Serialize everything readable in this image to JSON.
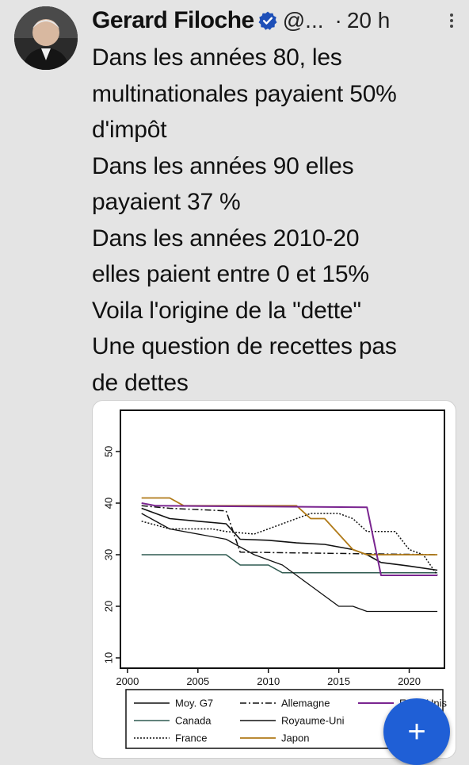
{
  "tweet": {
    "author_name": "Gerard Filoche",
    "handle": "@...",
    "separator": "·",
    "time": "20 h",
    "lines": [
      "Dans les années 80, les",
      "multinationales payaient 50%",
      "d'impôt",
      "Dans les années 90 elles",
      "payaient 37 %",
      "Dans les années 2010-20",
      "elles paient entre 0 et 15%",
      "Voila l'origine de la \"dette\"",
      "Une question de recettes pas",
      "de dettes"
    ]
  },
  "icons": {
    "verified": "verified-badge-icon",
    "more": "more-options-icon",
    "compose": "plus-icon"
  },
  "compose_label": "+",
  "colors": {
    "accent": "#1f5fd6",
    "background": "#e4e4e4"
  },
  "chart_data": {
    "type": "line",
    "x": [
      2000,
      2005,
      2010,
      2015,
      2020
    ],
    "xticks": [
      "2000",
      "2005",
      "2010",
      "2015",
      "2020"
    ],
    "yticks": [
      "10",
      "20",
      "30",
      "40",
      "50"
    ],
    "xlim": [
      1999.5,
      2022.5
    ],
    "ylim": [
      8,
      58
    ],
    "grid": false,
    "legend_position": "bottom",
    "series": [
      {
        "name": "Moy. G7",
        "color": "#111111",
        "dash": "",
        "width": 1.6,
        "points": [
          [
            2001,
            39
          ],
          [
            2003,
            37
          ],
          [
            2005,
            36.5
          ],
          [
            2007,
            36
          ],
          [
            2008,
            33
          ],
          [
            2010,
            32.8
          ],
          [
            2012,
            32.3
          ],
          [
            2014,
            32
          ],
          [
            2016,
            31
          ],
          [
            2017,
            30
          ],
          [
            2018,
            28.5
          ],
          [
            2020,
            27.8
          ],
          [
            2022,
            27
          ]
        ]
      },
      {
        "name": "Canada",
        "color": "#2f5a50",
        "dash": "",
        "width": 1.5,
        "points": [
          [
            2001,
            30
          ],
          [
            2007,
            30
          ],
          [
            2008,
            28
          ],
          [
            2010,
            28
          ],
          [
            2011,
            26.5
          ],
          [
            2022,
            26.5
          ]
        ]
      },
      {
        "name": "France",
        "color": "#111111",
        "dash": "2,2",
        "width": 1.5,
        "points": [
          [
            2001,
            36.5
          ],
          [
            2003,
            35
          ],
          [
            2006,
            35
          ],
          [
            2007,
            34.5
          ],
          [
            2009,
            34
          ],
          [
            2010,
            35
          ],
          [
            2011,
            36
          ],
          [
            2012,
            37
          ],
          [
            2013,
            38
          ],
          [
            2014,
            38
          ],
          [
            2015,
            38
          ],
          [
            2016,
            37
          ],
          [
            2017,
            34.5
          ],
          [
            2019,
            34.5
          ],
          [
            2020,
            31
          ],
          [
            2021,
            30
          ],
          [
            2022,
            26
          ]
        ]
      },
      {
        "name": "Allemagne",
        "color": "#111111",
        "dash": "8,3,2,3",
        "width": 1.5,
        "points": [
          [
            2001,
            39.5
          ],
          [
            2003,
            39
          ],
          [
            2007,
            38.5
          ],
          [
            2008,
            30.5
          ],
          [
            2022,
            30
          ]
        ]
      },
      {
        "name": "Royaume-Uni",
        "color": "#111111",
        "dash": "",
        "width": 1.3,
        "points": [
          [
            2001,
            38
          ],
          [
            2003,
            35
          ],
          [
            2007,
            33
          ],
          [
            2009,
            30
          ],
          [
            2011,
            28
          ],
          [
            2012,
            26
          ],
          [
            2013,
            24
          ],
          [
            2014,
            22
          ],
          [
            2015,
            20
          ],
          [
            2016,
            20
          ],
          [
            2017,
            19
          ],
          [
            2022,
            19
          ]
        ]
      },
      {
        "name": "Japon",
        "color": "#b07a18",
        "dash": "",
        "width": 1.8,
        "points": [
          [
            2001,
            41
          ],
          [
            2003,
            41
          ],
          [
            2004,
            39.5
          ],
          [
            2012,
            39.5
          ],
          [
            2013,
            37
          ],
          [
            2014,
            37
          ],
          [
            2015,
            34
          ],
          [
            2016,
            31
          ],
          [
            2017,
            30
          ],
          [
            2022,
            30
          ]
        ]
      },
      {
        "name": "Etats-Unis",
        "color": "#7a2590",
        "dash": "",
        "width": 2.0,
        "points": [
          [
            2001,
            40
          ],
          [
            2002,
            39.5
          ],
          [
            2017,
            39.2
          ],
          [
            2018,
            26
          ],
          [
            2022,
            26
          ]
        ]
      }
    ],
    "legend": [
      {
        "label": "Moy. G7",
        "series": 0
      },
      {
        "label": "Canada",
        "series": 1
      },
      {
        "label": "France",
        "series": 2
      },
      {
        "label": "Allemagne",
        "series": 3
      },
      {
        "label": "Royaume-Uni",
        "series": 4
      },
      {
        "label": "Japon",
        "series": 5
      },
      {
        "label": "Etats-Unis",
        "series": 6
      }
    ]
  }
}
